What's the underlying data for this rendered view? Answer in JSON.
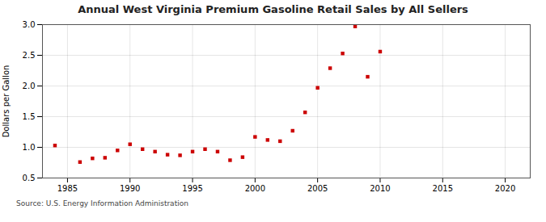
{
  "chart_data": {
    "type": "scatter",
    "title": "Annual West Virginia Premium Gasoline Retail Sales by All Sellers",
    "ylabel": "Dollars per Gallon",
    "source": "Source: U.S. Energy Information Administration",
    "x": [
      1984,
      1986,
      1987,
      1988,
      1989,
      1990,
      1991,
      1992,
      1993,
      1994,
      1995,
      1996,
      1997,
      1998,
      1999,
      2000,
      2001,
      2002,
      2003,
      2004,
      2005,
      2006,
      2007,
      2008,
      2009,
      2010
    ],
    "values": [
      1.03,
      0.76,
      0.82,
      0.83,
      0.95,
      1.05,
      0.97,
      0.93,
      0.88,
      0.87,
      0.93,
      0.97,
      0.93,
      0.79,
      0.84,
      1.17,
      1.12,
      1.1,
      1.27,
      1.57,
      1.97,
      2.29,
      2.53,
      2.97,
      2.15,
      2.56
    ],
    "color": "#cc0000",
    "marker": "square",
    "xlim": [
      1983,
      2022
    ],
    "ylim": [
      0.5,
      3.0
    ],
    "xticks": [
      1985,
      1990,
      1995,
      2000,
      2005,
      2010,
      2015,
      2020
    ],
    "yticks": [
      0.5,
      {
        "value": 1.0,
        "label": "1.0"
      },
      1.5,
      {
        "value": 2.0,
        "label": "2.0"
      },
      2.5,
      {
        "value": 3.0,
        "label": "3.0"
      }
    ],
    "grid": true
  }
}
